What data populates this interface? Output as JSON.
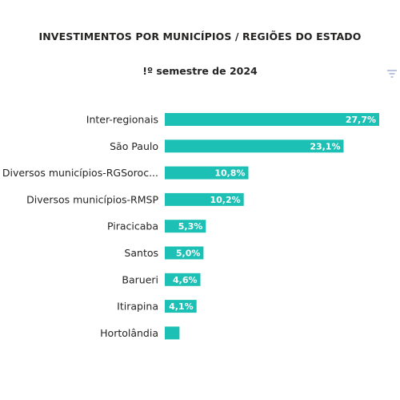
{
  "header": {
    "title": "INVESTIMENTOS POR MUNICÍPIOS / REGIÕES DO ESTADO",
    "subtitle": "!º semestre de 2024"
  },
  "icons": {
    "filter": "filter-icon"
  },
  "colors": {
    "bar": "#1DC0B4",
    "label_text": "#252423",
    "value_text": "#ffffff"
  },
  "chart_data": {
    "type": "bar",
    "orientation": "horizontal",
    "categories": [
      "Inter-regionais",
      "São Paulo",
      "Diversos municípios-RGSoroc...",
      "Diversos municípios-RMSP",
      "Piracicaba",
      "Santos",
      "Barueri",
      "Itirapina",
      "Hortolândia"
    ],
    "values": [
      27.7,
      23.1,
      10.8,
      10.2,
      5.3,
      5.0,
      4.6,
      4.1,
      1.9
    ],
    "data_labels": [
      "27,7%",
      "23,1%",
      "10,8%",
      "10,2%",
      "5,3%",
      "5,0%",
      "4,6%",
      "4,1%",
      ""
    ],
    "xlim": [
      0,
      27.7
    ],
    "grid": false,
    "legend": "none"
  }
}
